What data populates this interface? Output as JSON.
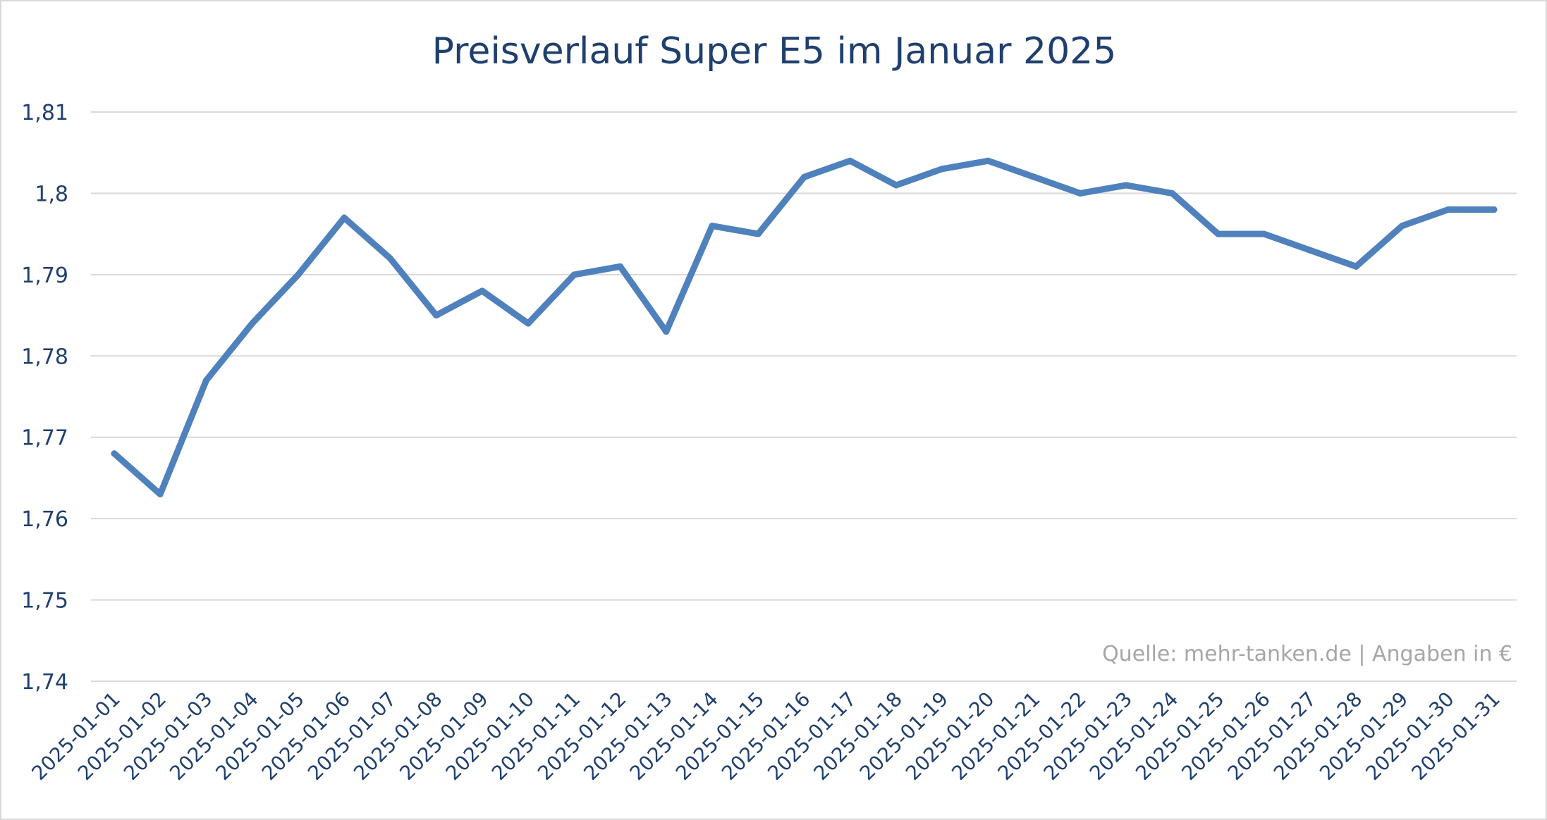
{
  "chart_data": {
    "type": "line",
    "title": "Preisverlauf Super E5 im Januar 2025",
    "xlabel": "",
    "ylabel": "",
    "source_note": "Quelle: mehr-tanken.de | Angaben in €",
    "ylim": [
      1.74,
      1.81
    ],
    "yticks": [
      "1,74",
      "1,75",
      "1,76",
      "1,77",
      "1,78",
      "1,79",
      "1,8",
      "1,81"
    ],
    "grid": true,
    "legend": "none",
    "categories": [
      "2025-01-01",
      "2025-01-02",
      "2025-01-03",
      "2025-01-04",
      "2025-01-05",
      "2025-01-06",
      "2025-01-07",
      "2025-01-08",
      "2025-01-09",
      "2025-01-10",
      "2025-01-11",
      "2025-01-12",
      "2025-01-13",
      "2025-01-14",
      "2025-01-15",
      "2025-01-16",
      "2025-01-17",
      "2025-01-18",
      "2025-01-19",
      "2025-01-20",
      "2025-01-21",
      "2025-01-22",
      "2025-01-23",
      "2025-01-24",
      "2025-01-25",
      "2025-01-26",
      "2025-01-27",
      "2025-01-28",
      "2025-01-29",
      "2025-01-30",
      "2025-01-31"
    ],
    "series": [
      {
        "color": "#4f81bd",
        "values": [
          1.768,
          1.763,
          1.777,
          1.784,
          1.79,
          1.797,
          1.792,
          1.785,
          1.788,
          1.784,
          1.79,
          1.791,
          1.783,
          1.796,
          1.795,
          1.802,
          1.804,
          1.801,
          1.803,
          1.804,
          1.802,
          1.8,
          1.801,
          1.8,
          1.795,
          1.795,
          1.793,
          1.791,
          1.796,
          1.798,
          1.798
        ]
      }
    ]
  }
}
